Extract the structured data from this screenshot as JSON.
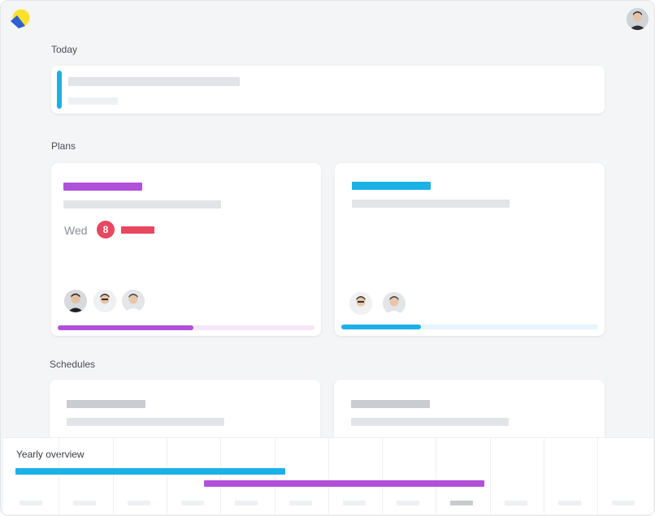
{
  "sections": {
    "today": "Today",
    "plans": "Plans",
    "schedules": "Schedules"
  },
  "plans": [
    {
      "accent": "#b150d8",
      "progress": 0.53,
      "date_day": "Wed",
      "date_num": "8",
      "badge_color": "#e8485f",
      "member_count": 3
    },
    {
      "accent": "#1bb1e7",
      "progress": 0.31,
      "member_count": 2
    }
  ],
  "overview": {
    "title": "Yearly overview",
    "months": 12,
    "current_month_index": 8,
    "bars": [
      {
        "color": "#1bb1e7",
        "start_month": 0.0,
        "end_month": 5.0
      },
      {
        "color": "#b150d8",
        "start_month": 3.5,
        "end_month": 8.7
      }
    ]
  },
  "colors": {
    "accent_blue": "#1bb1e7",
    "accent_purple": "#b150d8",
    "accent_red": "#e8485f",
    "skeleton": "#e2e4e8"
  }
}
